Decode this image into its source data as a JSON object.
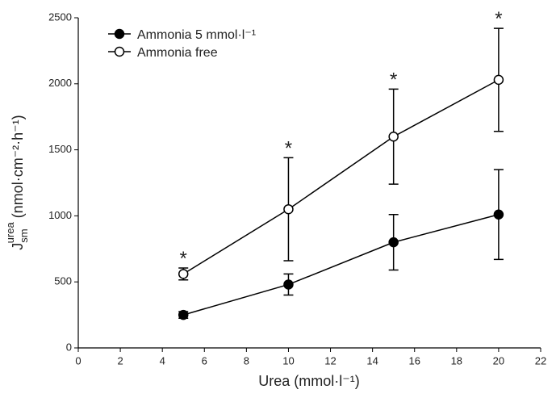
{
  "chart_data": {
    "type": "line",
    "xlabel": "Urea (mmol·l⁻¹)",
    "ylabel": {
      "main": "J",
      "sub": "sm",
      "sup": "urea",
      "unit": " (nmol·cm⁻²·h⁻¹)"
    },
    "x": [
      5,
      10,
      15,
      20
    ],
    "series": [
      {
        "name": "Ammonia 5 mmol·l⁻¹",
        "color": "#000000",
        "marker_fill": "#000000",
        "values": [
          250,
          480,
          800,
          1010
        ],
        "errors": [
          25,
          80,
          210,
          340
        ]
      },
      {
        "name": "Ammonia free",
        "color": "#000000",
        "marker_fill": "#ffffff",
        "values": [
          560,
          1050,
          1600,
          2030
        ],
        "errors": [
          45,
          390,
          360,
          390
        ]
      }
    ],
    "annotations": [
      {
        "x": 5,
        "text": "*"
      },
      {
        "x": 10,
        "text": "*"
      },
      {
        "x": 15,
        "text": "*"
      },
      {
        "x": 20,
        "text": "*"
      }
    ],
    "xlim": [
      0,
      22
    ],
    "xticks": [
      0,
      2,
      4,
      6,
      8,
      10,
      12,
      14,
      16,
      18,
      20,
      22
    ],
    "ylim": [
      0,
      2500
    ],
    "yticks": [
      0,
      500,
      1000,
      1500,
      2000,
      2500
    ],
    "grid": false,
    "legend": "upper left"
  }
}
